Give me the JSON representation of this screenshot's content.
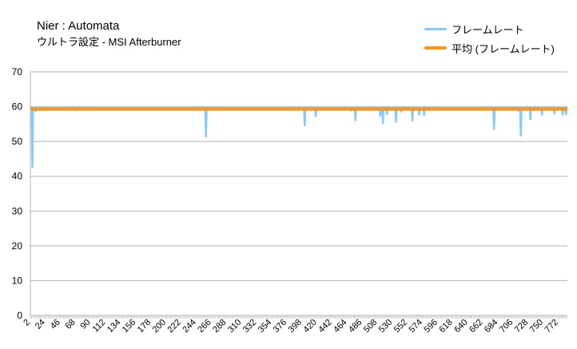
{
  "chart_data": {
    "type": "line",
    "title": "Nier : Automata",
    "subtitle": "ウルトラ設定 - MSI Afterburner",
    "ylim": [
      0,
      70
    ],
    "yticks": [
      0,
      10,
      20,
      30,
      40,
      50,
      60,
      70
    ],
    "grid": "horizontal",
    "legend_position": "top-right",
    "x_start": 2,
    "x_end": 785,
    "x_label_step": 22,
    "series": [
      {
        "name": "フレームレート",
        "color": "#83caff",
        "baseline": 59.8,
        "dips": [
          {
            "x": 5,
            "y": 42.7
          },
          {
            "x": 10,
            "y": 58.7
          },
          {
            "x": 68,
            "y": 59.0
          },
          {
            "x": 80,
            "y": 59.0
          },
          {
            "x": 258,
            "y": 51.4
          },
          {
            "x": 402,
            "y": 54.6
          },
          {
            "x": 418,
            "y": 57.3
          },
          {
            "x": 470,
            "y": 58.9
          },
          {
            "x": 476,
            "y": 56.1
          },
          {
            "x": 512,
            "y": 57.4
          },
          {
            "x": 516,
            "y": 55.3
          },
          {
            "x": 522,
            "y": 57.8
          },
          {
            "x": 535,
            "y": 55.6
          },
          {
            "x": 543,
            "y": 58.6
          },
          {
            "x": 559,
            "y": 56.0
          },
          {
            "x": 569,
            "y": 57.7
          },
          {
            "x": 576,
            "y": 57.6
          },
          {
            "x": 678,
            "y": 53.6
          },
          {
            "x": 713,
            "y": 58.8
          },
          {
            "x": 717,
            "y": 51.7
          },
          {
            "x": 731,
            "y": 56.4
          },
          {
            "x": 737,
            "y": 59.0
          },
          {
            "x": 748,
            "y": 57.7
          },
          {
            "x": 766,
            "y": 58.0
          },
          {
            "x": 778,
            "y": 57.7
          },
          {
            "x": 783,
            "y": 57.8
          }
        ]
      },
      {
        "name": "平均 (フレームレート)",
        "color": "#ff950e",
        "value": 59.3
      }
    ]
  }
}
